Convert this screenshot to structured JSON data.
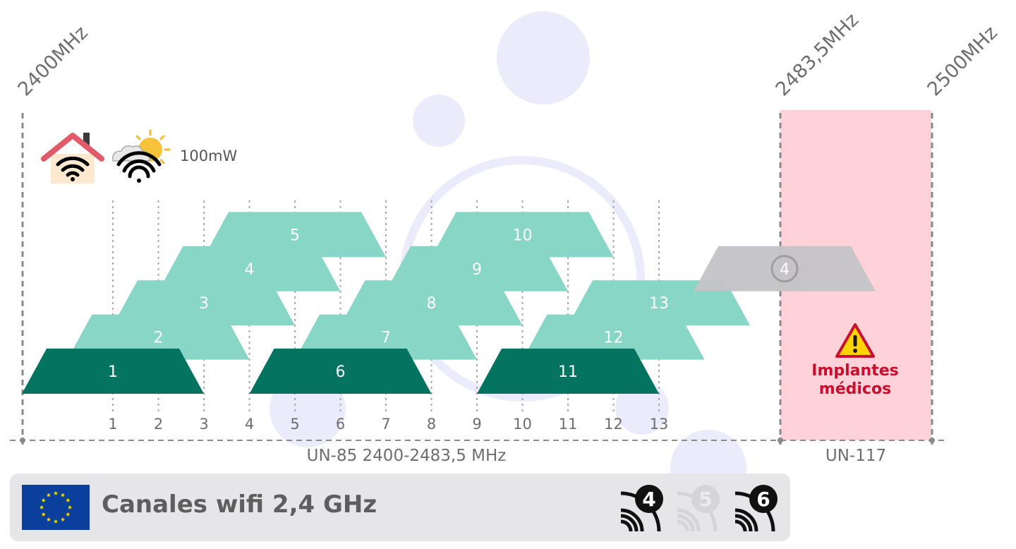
{
  "frequency_labels": {
    "start": "2400MHz",
    "band_end": "2483,5MHz",
    "end": "2500MHz"
  },
  "power": "100mW",
  "icons": {
    "indoor": "house-wifi-icon",
    "outdoor": "outdoor-sun-wifi-icon",
    "warning": "warning-triangle-icon",
    "flag": "eu-flag-icon"
  },
  "channels": [
    {
      "number": "1",
      "row": 0,
      "non_overlapping": true
    },
    {
      "number": "2",
      "row": 1,
      "non_overlapping": false
    },
    {
      "number": "3",
      "row": 2,
      "non_overlapping": false
    },
    {
      "number": "4",
      "row": 3,
      "non_overlapping": false
    },
    {
      "number": "5",
      "row": 4,
      "non_overlapping": false
    },
    {
      "number": "6",
      "row": 0,
      "non_overlapping": true
    },
    {
      "number": "7",
      "row": 1,
      "non_overlapping": false
    },
    {
      "number": "8",
      "row": 2,
      "non_overlapping": false
    },
    {
      "number": "9",
      "row": 3,
      "non_overlapping": false
    },
    {
      "number": "10",
      "row": 4,
      "non_overlapping": false
    },
    {
      "number": "11",
      "row": 0,
      "non_overlapping": true
    },
    {
      "number": "12",
      "row": 1,
      "non_overlapping": false
    },
    {
      "number": "13",
      "row": 2,
      "non_overlapping": false
    }
  ],
  "channel_14": {
    "number": "4",
    "row": 3,
    "disabled": true
  },
  "axis_ticks": [
    "1",
    "2",
    "3",
    "4",
    "5",
    "6",
    "7",
    "8",
    "9",
    "10",
    "11",
    "12",
    "13"
  ],
  "ranges": {
    "un85": "UN-85 2400-2483,5 MHz",
    "un117": "UN-117"
  },
  "warning": {
    "line1": "Implantes",
    "line2": "médicos"
  },
  "footer": {
    "title": "Canales wifi 2,4 GHz",
    "generations": [
      {
        "label": "4",
        "active": true
      },
      {
        "label": "5",
        "active": false
      },
      {
        "label": "6",
        "active": true
      }
    ]
  },
  "colors": {
    "channel_light": "#87d6c6",
    "channel_dark": "#047461",
    "channel_disabled": "#c4c4c6",
    "restricted_zone": "#ffd1d8",
    "warning_text": "#c8102e",
    "warning_fill": "#ffd400",
    "grid_line": "#a8a8a8",
    "footer_bg": "#e6e6e9",
    "eu_blue": "#0a3f9e",
    "eu_star": "#ffd400"
  }
}
